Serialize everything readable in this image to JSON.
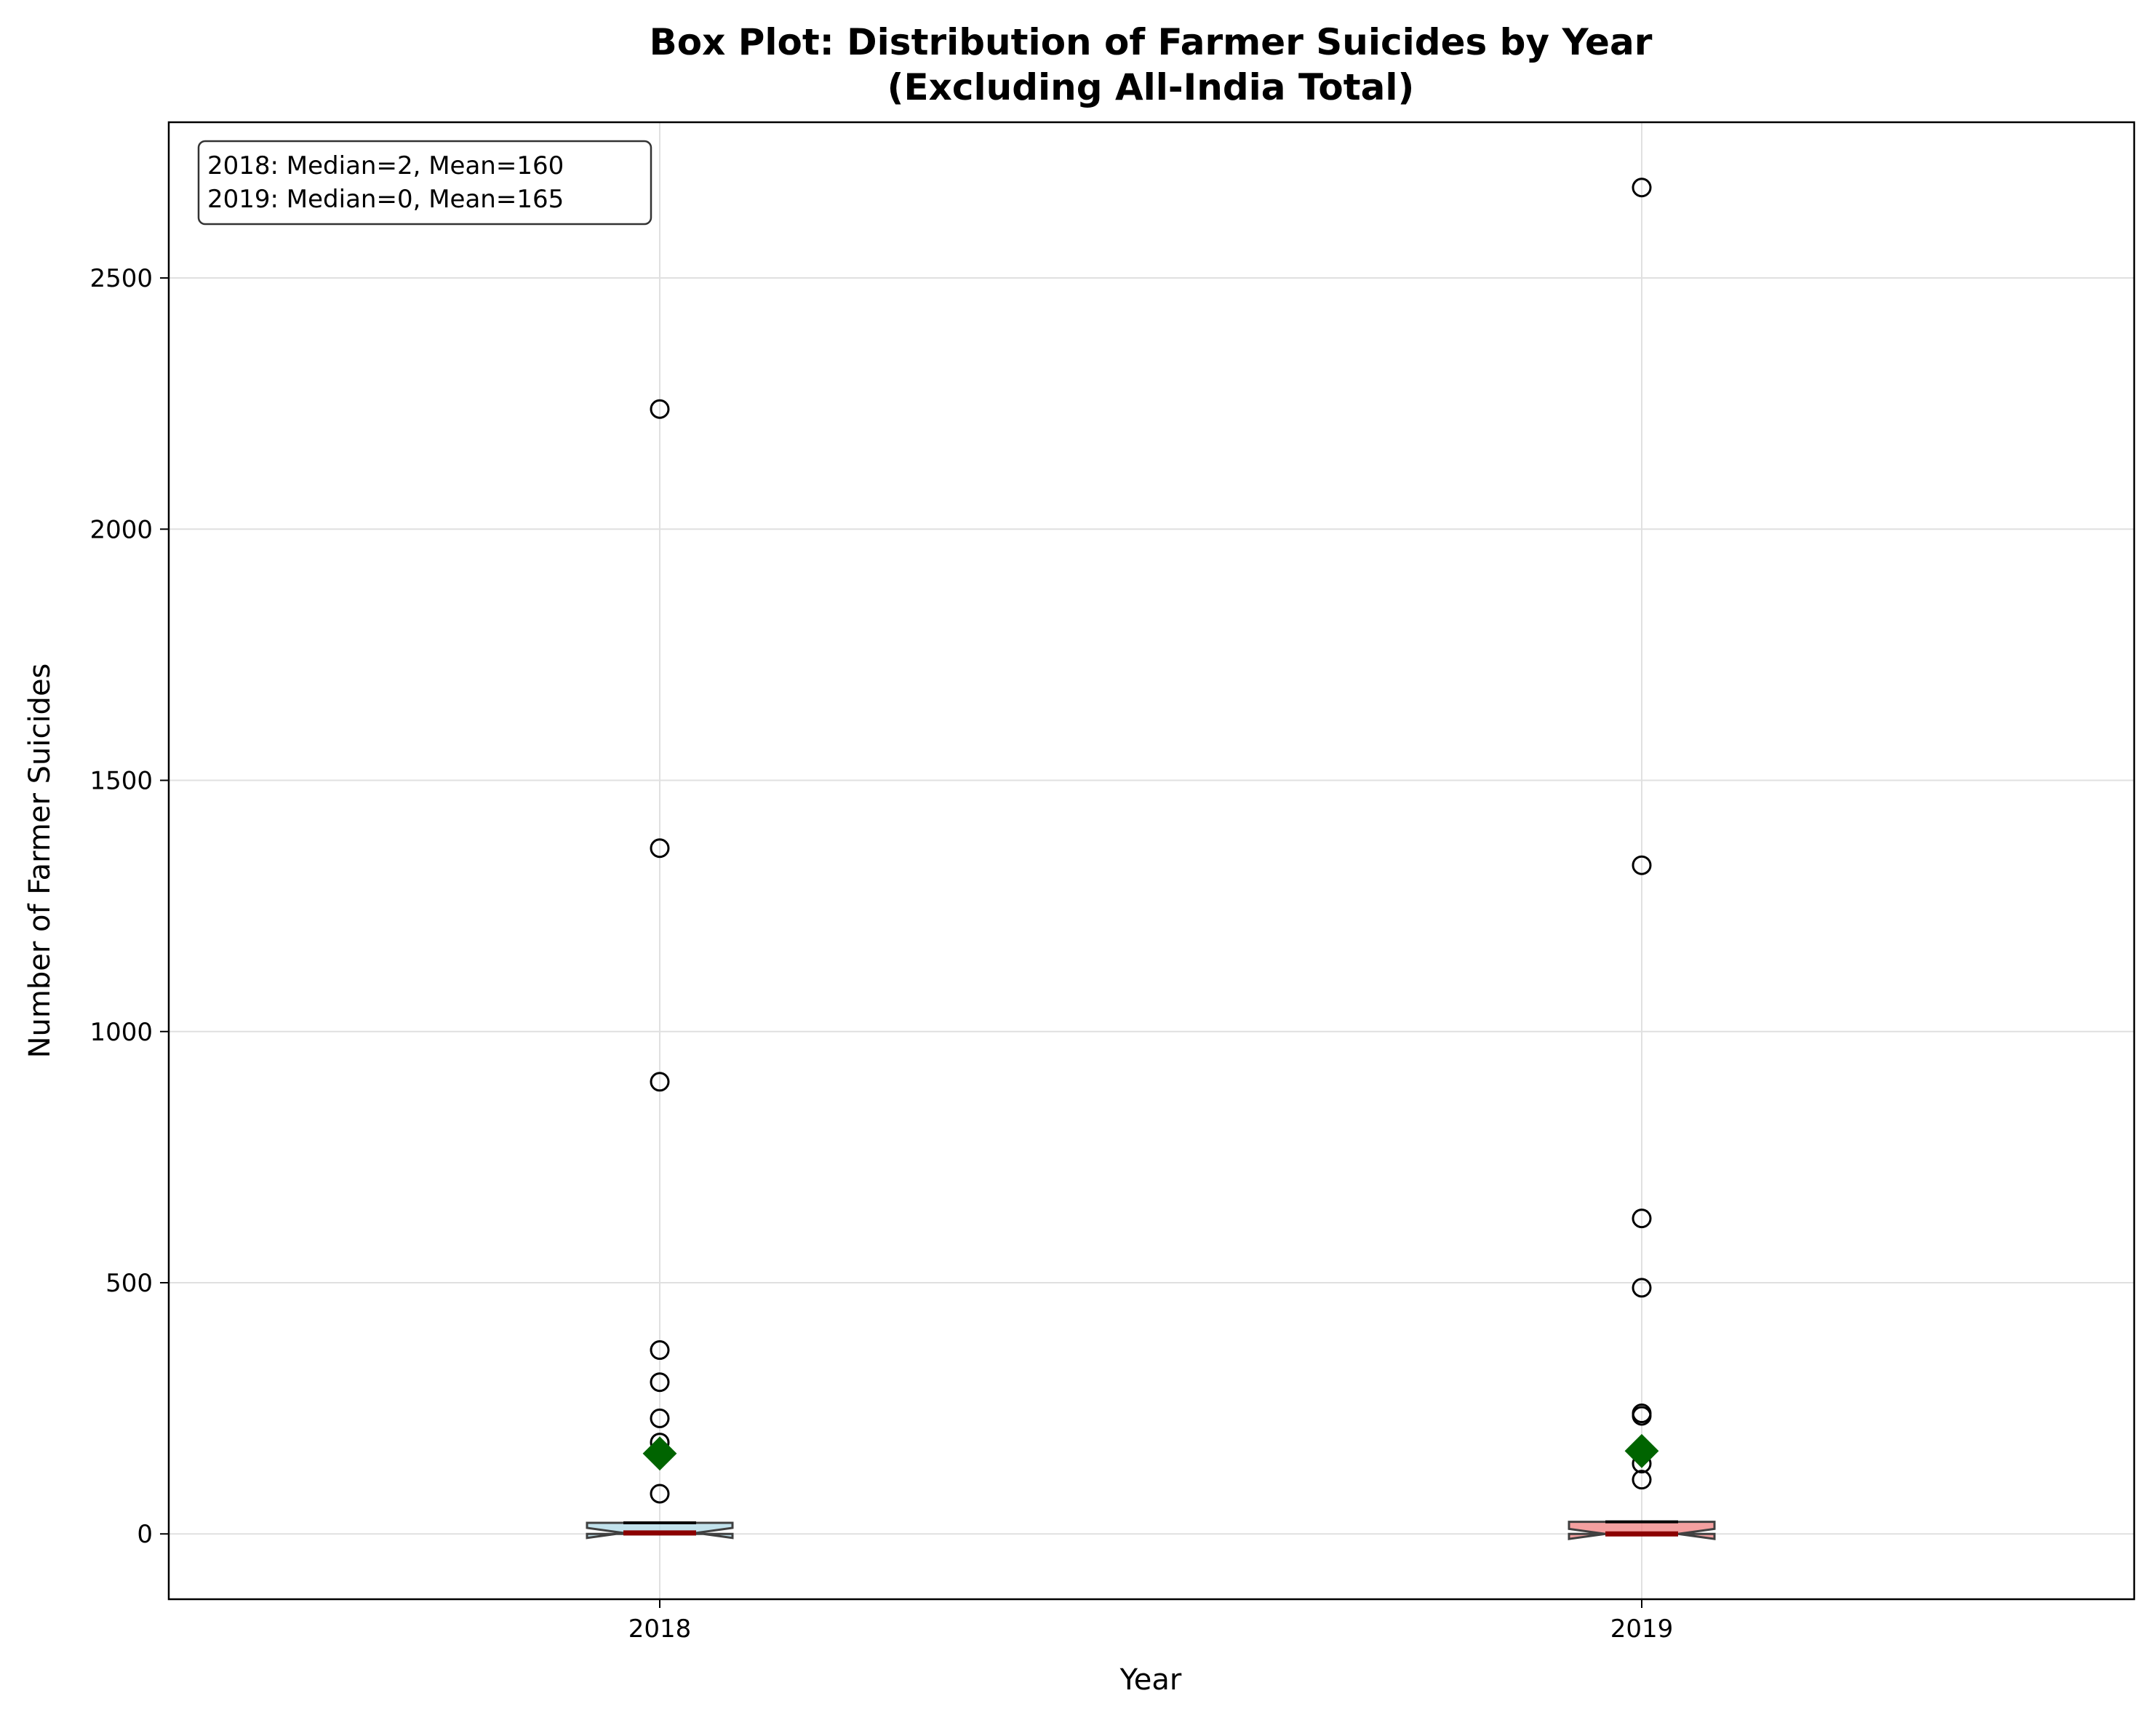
{
  "chart_data": {
    "type": "box",
    "title": "Box Plot: Distribution of Farmer Suicides by Year",
    "subtitle": "(Excluding All-India Total)",
    "xlabel": "Year",
    "ylabel": "Number of Farmer Suicides",
    "ylim": [
      -130,
      2810
    ],
    "yticks": [
      0,
      500,
      1000,
      1500,
      2000,
      2500
    ],
    "grid": true,
    "stats_box": {
      "position": "top-left",
      "lines": [
        "2018: Median=2, Mean=160",
        "2019: Median=0, Mean=165"
      ]
    },
    "categories": [
      "2018",
      "2019"
    ],
    "series": [
      {
        "category": "2018",
        "box_color": "#add8e6",
        "q1": 0,
        "median": 2,
        "q3": 22,
        "whisker_low": 0,
        "whisker_high": 22,
        "notch_low": -8,
        "notch_high": 12,
        "mean": 160,
        "outliers": [
          80,
          182,
          230,
          302,
          366,
          900,
          1365,
          2239
        ]
      },
      {
        "category": "2019",
        "box_color": "#f08080",
        "q1": 0,
        "median": 0,
        "q3": 24,
        "whisker_low": 0,
        "whisker_high": 24,
        "notch_low": -10,
        "notch_high": 10,
        "mean": 165,
        "outliers": [
          108,
          140,
          235,
          240,
          490,
          628,
          1331,
          2680
        ]
      }
    ],
    "colors": {
      "median_line": "#8b0000",
      "mean_marker": "#006400",
      "grid": "#e0e0e0",
      "box_edge": "#404040"
    }
  }
}
